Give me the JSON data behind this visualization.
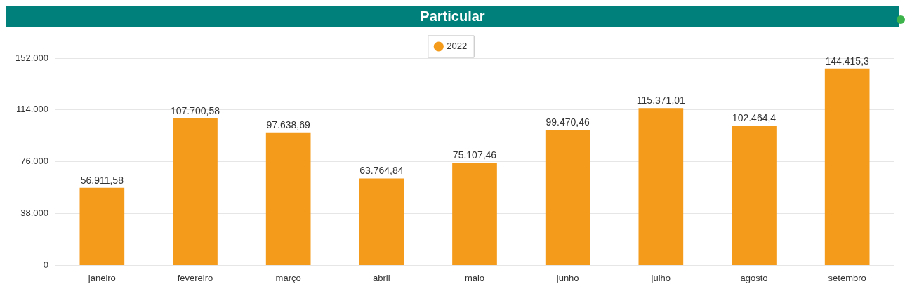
{
  "chart_data": {
    "type": "bar",
    "title": "Particular",
    "categories": [
      "janeiro",
      "fevereiro",
      "março",
      "abril",
      "maio",
      "junho",
      "julho",
      "agosto",
      "setembro"
    ],
    "series": [
      {
        "name": "2022",
        "color": "#f59b1c",
        "values": [
          56911.58,
          107700.58,
          97638.69,
          63764.84,
          75107.46,
          99470.46,
          115371.01,
          102464.4,
          144415.3
        ],
        "value_labels": [
          "56.911,58",
          "107.700,58",
          "97.638,69",
          "63.764,84",
          "75.107,46",
          "99.470,46",
          "115.371,01",
          "102.464,4",
          "144.415,3"
        ]
      }
    ],
    "ylim": [
      0,
      152000
    ],
    "yticks": [
      {
        "value": 0,
        "label": "0"
      },
      {
        "value": 38000,
        "label": "38.000"
      },
      {
        "value": 76000,
        "label": "76.000"
      },
      {
        "value": 114000,
        "label": "114.000"
      },
      {
        "value": 152000,
        "label": "152.000"
      }
    ],
    "grid": "y",
    "legend": "top"
  }
}
